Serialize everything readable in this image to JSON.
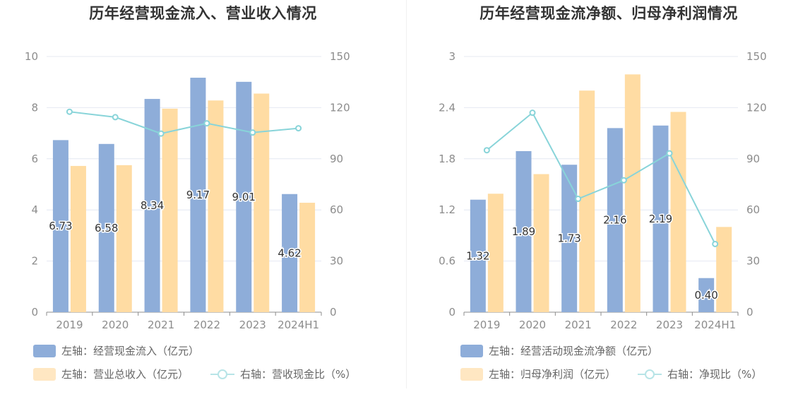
{
  "colors": {
    "bar1": "#8eadd9",
    "bar2": "#ffdca3",
    "line": "#88d4d9",
    "grid": "#e4e8f2",
    "axis": "#8c8c8c"
  },
  "chart_data": [
    {
      "type": "bar",
      "title": "历年经营现金流入、营业收入情况",
      "categories": [
        "2019",
        "2020",
        "2021",
        "2022",
        "2023",
        "2024H1"
      ],
      "y_left": {
        "ylim": [
          0,
          10
        ],
        "ticks": [
          "0",
          "2",
          "4",
          "6",
          "8",
          "10"
        ]
      },
      "y_right": {
        "ylim": [
          0,
          150
        ],
        "ticks": [
          "0",
          "30",
          "60",
          "90",
          "120",
          "150"
        ]
      },
      "series": [
        {
          "name": "左轴：经营现金流入（亿元）",
          "axis": "left",
          "kind": "bar",
          "values": [
            6.73,
            6.58,
            8.34,
            9.17,
            9.01,
            4.62
          ],
          "labels": [
            "6.73",
            "6.58",
            "8.34",
            "9.17",
            "9.01",
            "4.62"
          ]
        },
        {
          "name": "左轴：营业总收入（亿元）",
          "axis": "left",
          "kind": "bar",
          "values": [
            5.72,
            5.75,
            7.96,
            8.28,
            8.55,
            4.28
          ]
        },
        {
          "name": "右轴：营收现金比（%）",
          "axis": "right",
          "kind": "line",
          "values": [
            117.6,
            114.4,
            104.8,
            110.8,
            105.4,
            107.9
          ]
        }
      ]
    },
    {
      "type": "bar",
      "title": "历年经营现金流净额、归母净利润情况",
      "categories": [
        "2019",
        "2020",
        "2021",
        "2022",
        "2023",
        "2024H1"
      ],
      "y_left": {
        "ylim": [
          0,
          3
        ],
        "ticks": [
          "0",
          "0.6",
          "1.2",
          "1.8",
          "2.4",
          "3"
        ]
      },
      "y_right": {
        "ylim": [
          0,
          150
        ],
        "ticks": [
          "0",
          "30",
          "60",
          "90",
          "120",
          "150"
        ]
      },
      "series": [
        {
          "name": "左轴：经营活动现金流净额（亿元）",
          "axis": "left",
          "kind": "bar",
          "values": [
            1.32,
            1.89,
            1.73,
            2.16,
            2.19,
            0.4
          ],
          "labels": [
            "1.32",
            "1.89",
            "1.73",
            "2.16",
            "2.19",
            "0.40"
          ]
        },
        {
          "name": "左轴：归母净利润（亿元）",
          "axis": "left",
          "kind": "bar",
          "values": [
            1.39,
            1.62,
            2.6,
            2.79,
            2.35,
            1.0
          ]
        },
        {
          "name": "右轴：净现比（%）",
          "axis": "right",
          "kind": "line",
          "values": [
            95,
            117,
            66.5,
            77.4,
            93.2,
            40
          ]
        }
      ]
    }
  ]
}
